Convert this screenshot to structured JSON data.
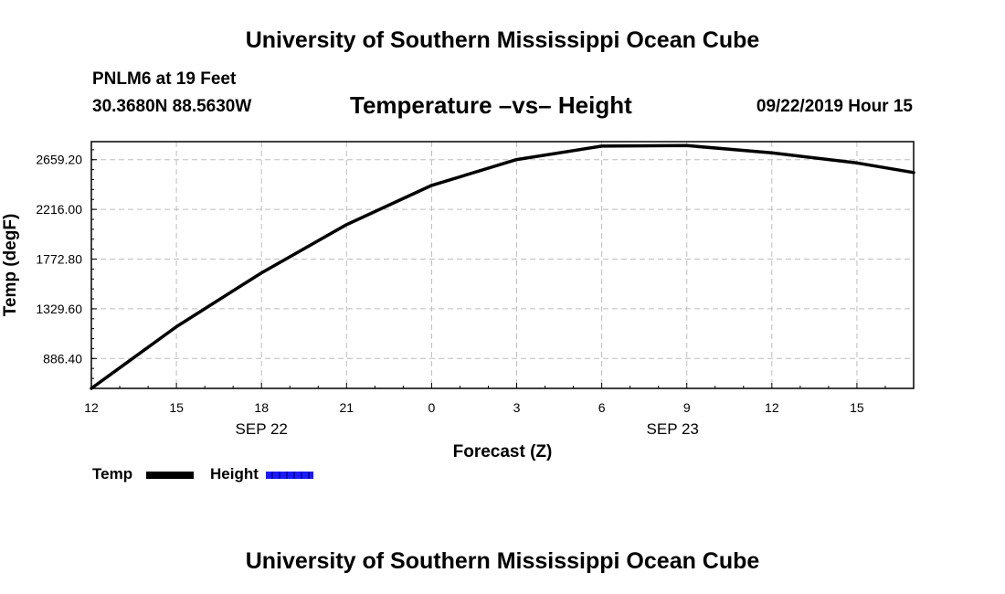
{
  "header": {
    "title_top": "University of Southern Mississippi Ocean Cube",
    "station": "PNLM6 at 19 Feet",
    "coords": "30.3680N 88.5630W",
    "chart_title": "Temperature –vs– Height",
    "datetime": "09/22/2019 Hour 15"
  },
  "footer": {
    "title_bottom": "University of Southern Mississippi Ocean Cube"
  },
  "legend": [
    {
      "label": "Temp",
      "color": "#000000"
    },
    {
      "label": "Height",
      "color": "#1a1aff"
    }
  ],
  "chart_data": {
    "type": "line",
    "title": "Temperature –vs– Height",
    "xlabel": "Forecast (Z)",
    "ylabel": "Temp (degF)",
    "xlim": [
      0,
      29
    ],
    "ylim": [
      620,
      2820
    ],
    "grid": true,
    "x_ticks": [
      {
        "x": 0,
        "label": "12"
      },
      {
        "x": 3,
        "label": "15"
      },
      {
        "x": 6,
        "label": "18"
      },
      {
        "x": 9,
        "label": "21"
      },
      {
        "x": 12,
        "label": "0"
      },
      {
        "x": 15,
        "label": "3"
      },
      {
        "x": 18,
        "label": "6"
      },
      {
        "x": 21,
        "label": "9"
      },
      {
        "x": 24,
        "label": "12"
      },
      {
        "x": 27,
        "label": "15"
      }
    ],
    "x_date_labels": [
      {
        "x": 6,
        "label": "SEP 22"
      },
      {
        "x": 20.5,
        "label": "SEP 23"
      }
    ],
    "y_ticks": [
      886.4,
      1329.6,
      1772.8,
      2216.0,
      2659.2
    ],
    "y_tick_labels": [
      "886.40",
      "1329.60",
      "1772.80",
      "2216.00",
      "2659.20"
    ],
    "series": [
      {
        "name": "Temp",
        "color": "#000000",
        "x": [
          0,
          3,
          6,
          9,
          12,
          15,
          18,
          21,
          24,
          27,
          29
        ],
        "y": [
          620,
          1170,
          1650,
          2080,
          2430,
          2660,
          2780,
          2785,
          2720,
          2630,
          2545
        ]
      },
      {
        "name": "Height",
        "color": "#1a1aff",
        "x": [],
        "y": []
      }
    ]
  }
}
